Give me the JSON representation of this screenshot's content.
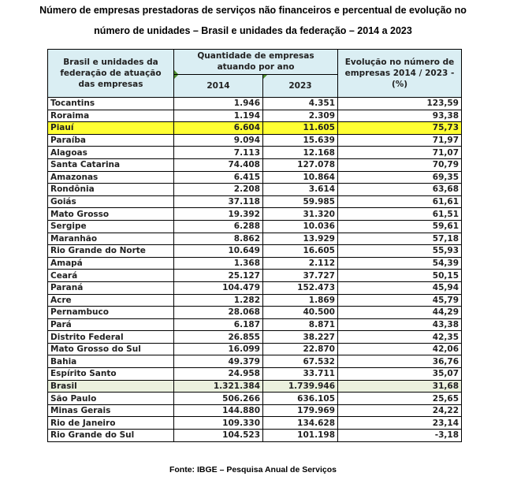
{
  "title": [
    "Número de empresas prestadoras de serviços não financeiros e percentual de evolução no",
    "número de unidades – Brasil e unidades da federação – 2014 a 2023"
  ],
  "table": {
    "header": {
      "col1": "Brasil e unidades da federação de atuação das empresas",
      "group": "Quantidade de empresas atuando por ano",
      "year1": "2014",
      "year2": "2023",
      "col4": "Evolução no número de empresas 2014 / 2023 - (%)"
    },
    "rows": [
      [
        "Tocantins",
        "1.946",
        "4.351",
        "123,59"
      ],
      [
        "Roraima",
        "1.194",
        "2.309",
        "93,38"
      ],
      [
        "Piauí",
        "6.604",
        "11.605",
        "75,73"
      ],
      [
        "Paraíba",
        "9.094",
        "15.639",
        "71,97"
      ],
      [
        "Alagoas",
        "7.113",
        "12.168",
        "71,07"
      ],
      [
        "Santa Catarina",
        "74.408",
        "127.078",
        "70,79"
      ],
      [
        "Amazonas",
        "6.415",
        "10.864",
        "69,35"
      ],
      [
        "Rondônia",
        "2.208",
        "3.614",
        "63,68"
      ],
      [
        "Goiás",
        "37.118",
        "59.985",
        "61,61"
      ],
      [
        "Mato Grosso",
        "19.392",
        "31.320",
        "61,51"
      ],
      [
        "Sergipe",
        "6.288",
        "10.036",
        "59,61"
      ],
      [
        "Maranhão",
        "8.862",
        "13.929",
        "57,18"
      ],
      [
        "Rio Grande do Norte",
        "10.649",
        "16.605",
        "55,93"
      ],
      [
        "Amapá",
        "1.368",
        "2.112",
        "54,39"
      ],
      [
        "Ceará",
        "25.127",
        "37.727",
        "50,15"
      ],
      [
        "Paraná",
        "104.479",
        "152.473",
        "45,94"
      ],
      [
        "Acre",
        "1.282",
        "1.869",
        "45,79"
      ],
      [
        "Pernambuco",
        "28.068",
        "40.500",
        "44,29"
      ],
      [
        "Pará",
        "6.187",
        "8.871",
        "43,38"
      ],
      [
        "Distrito Federal",
        "26.855",
        "38.227",
        "42,35"
      ],
      [
        "Mato Grosso do Sul",
        "16.099",
        "22.870",
        "42,06"
      ],
      [
        "Bahia",
        "49.379",
        "67.532",
        "36,76"
      ],
      [
        "Espírito Santo",
        "24.958",
        "33.711",
        "35,07"
      ],
      [
        "Brasil",
        "1.321.384",
        "1.739.946",
        "31,68"
      ],
      [
        "São Paulo",
        "506.266",
        "636.105",
        "25,65"
      ],
      [
        "Minas Gerais",
        "144.880",
        "179.969",
        "24,22"
      ],
      [
        "Rio de Janeiro",
        "109.330",
        "134.628",
        "23,14"
      ],
      [
        "Rio Grande do Sul",
        "104.523",
        "101.198",
        "-3,18"
      ]
    ]
  },
  "source": "Fonte: IBGE – Pesquisa Anual de Serviços"
}
